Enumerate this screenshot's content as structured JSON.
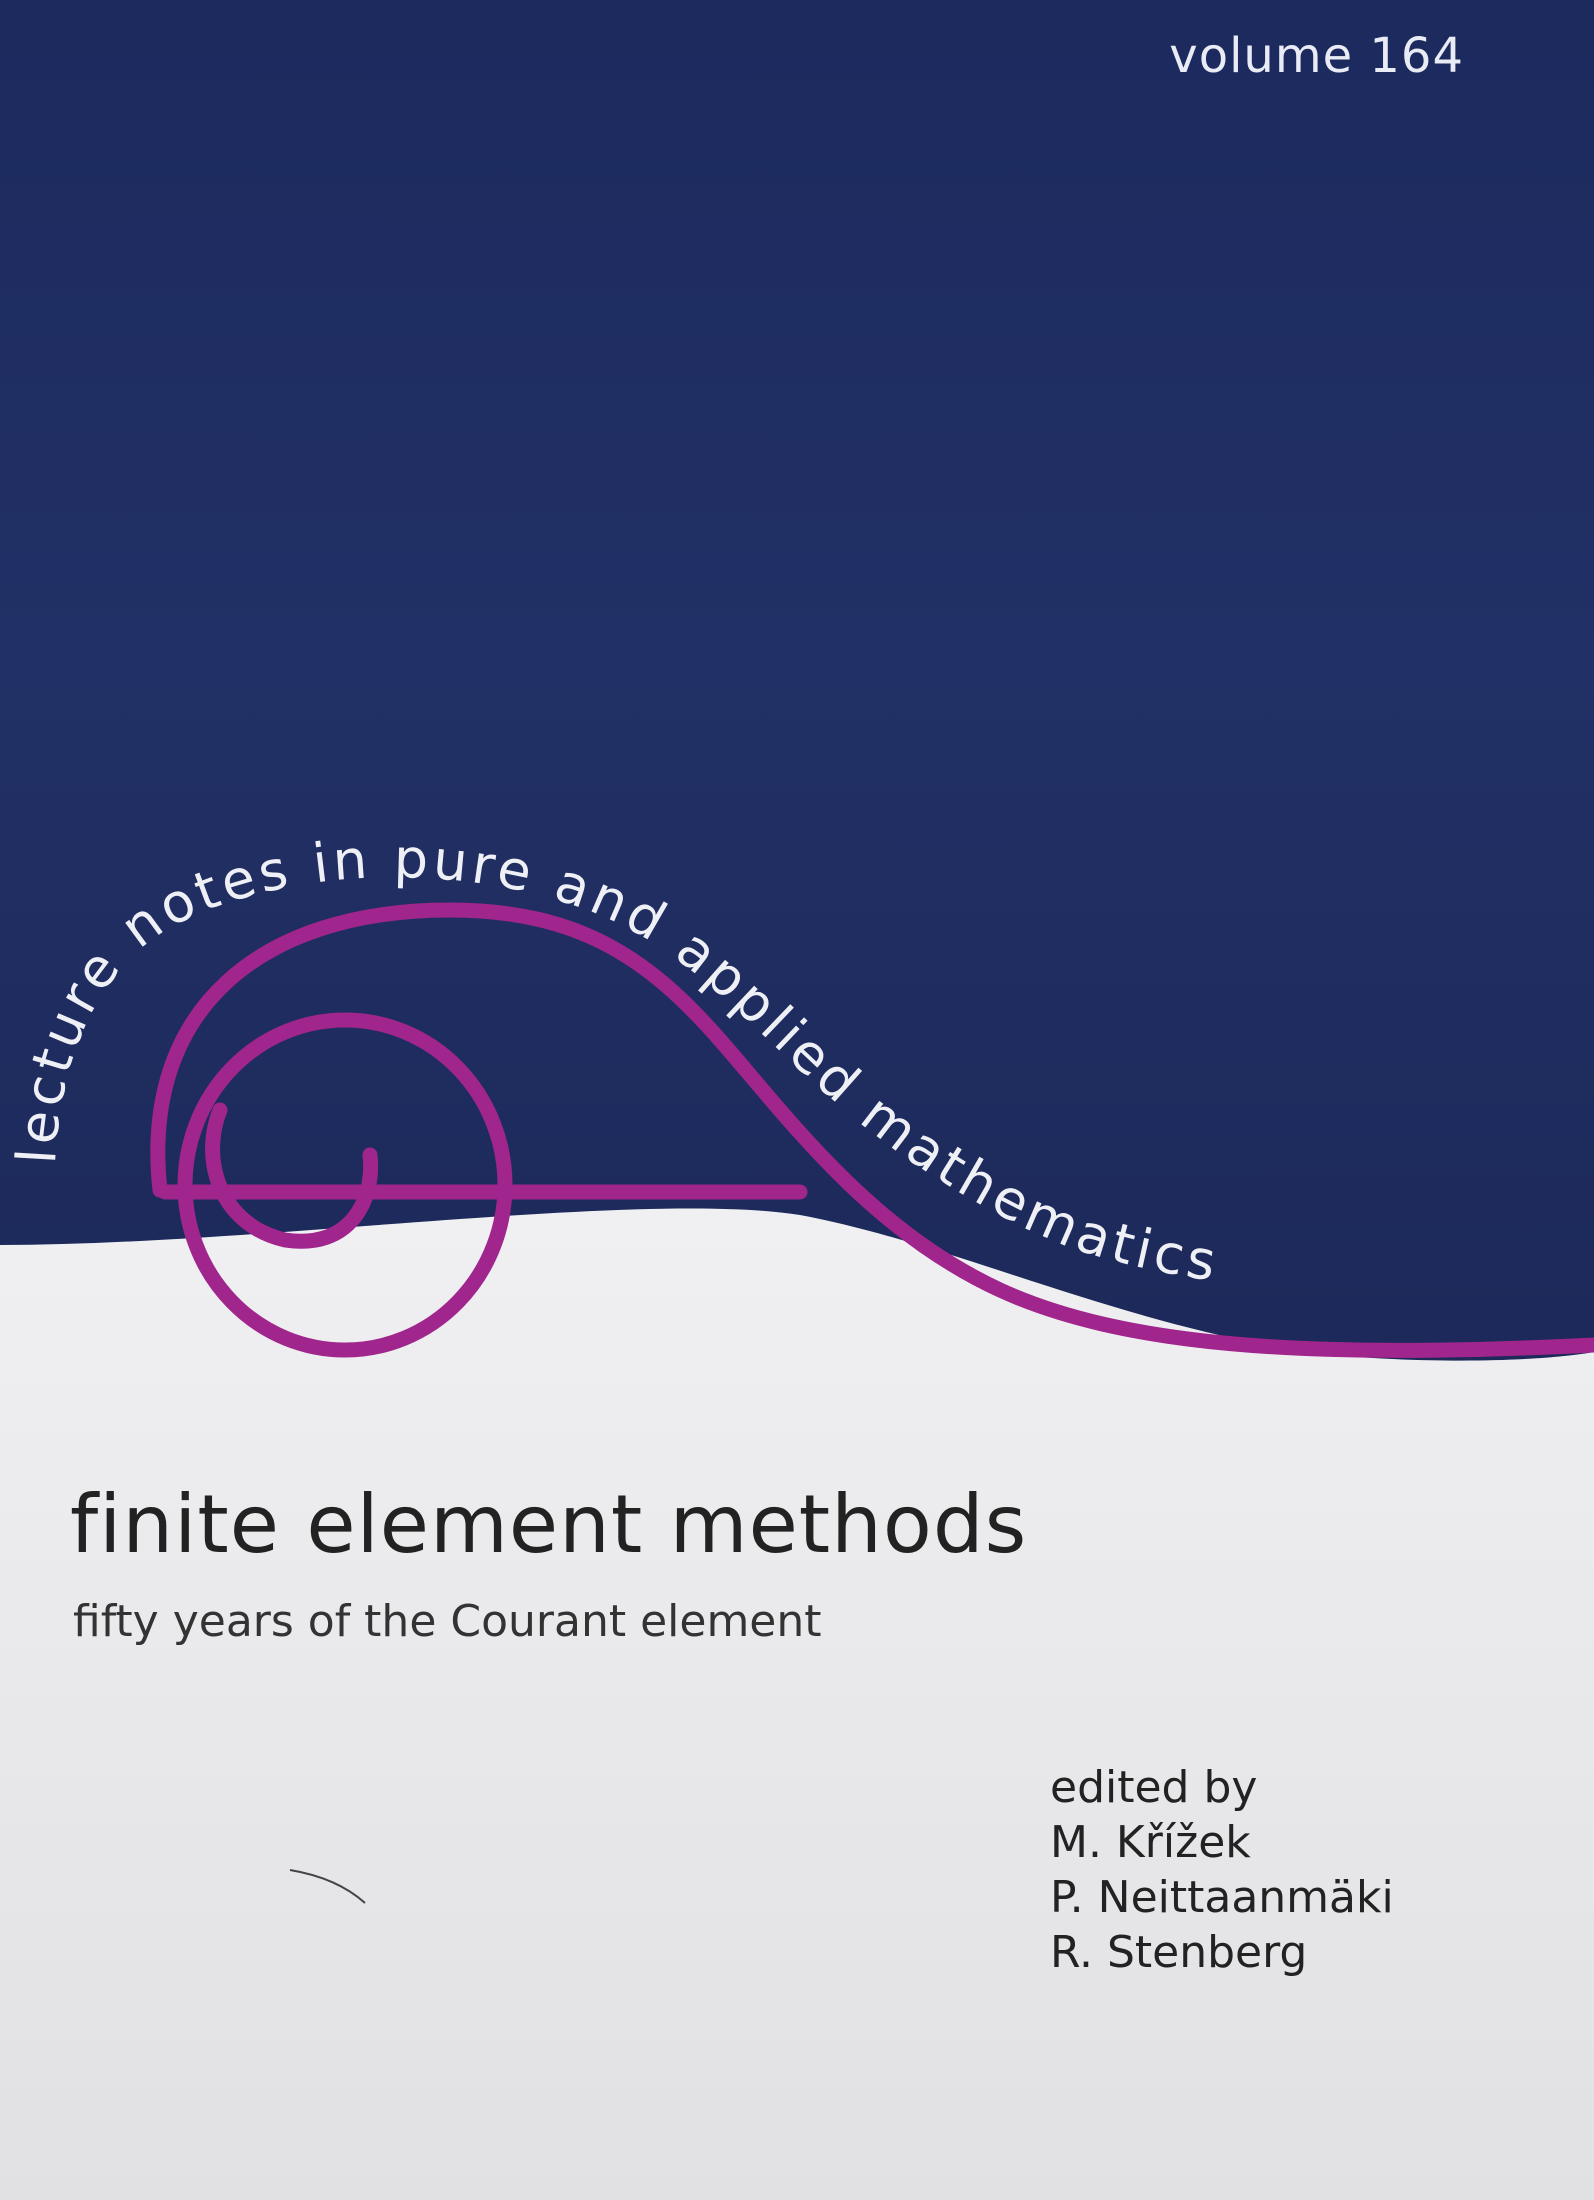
{
  "volume": "volume 164",
  "series": "lecture notes in pure and applied mathematics",
  "title": "finite element methods",
  "subtitle": "fifty years of the Courant element",
  "edited_by": "edited by",
  "editors": [
    "M. Křížek",
    "P. Neittaanmäki",
    "R. Stenberg"
  ],
  "colors": {
    "cover_blue": "#1f2a60",
    "swoosh_magenta": "#a0258c",
    "lower_panel": "#e8e8ea"
  },
  "logo": "magenta-spiral-series-logo"
}
